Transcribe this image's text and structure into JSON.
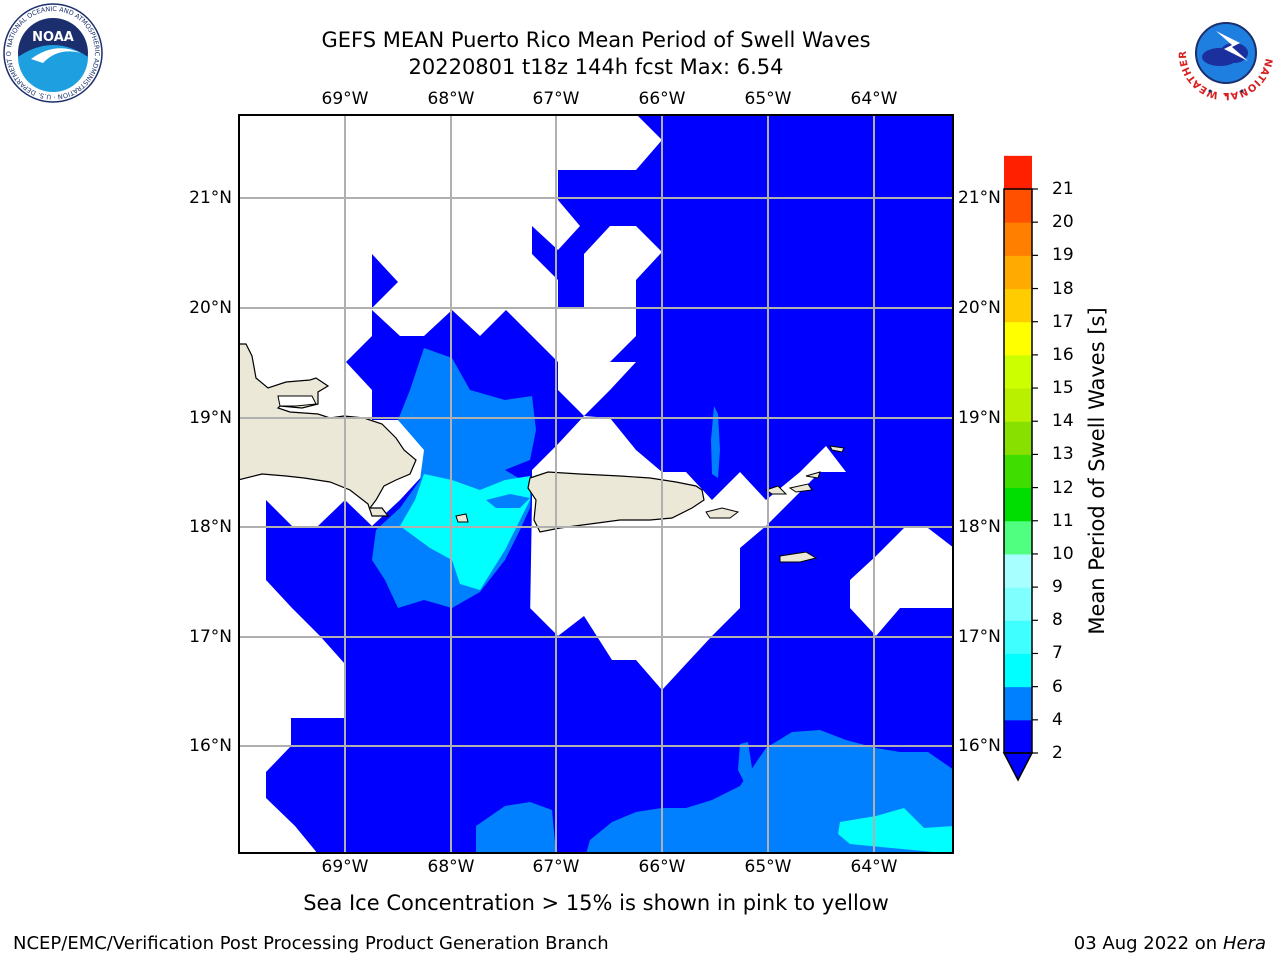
{
  "title_line_1": "GEFS MEAN Puerto Rico Mean Period of Swell Waves",
  "title_line_2": "20220801 t18z 144h fcst   Max: 6.54",
  "longitude_ticks": [
    "69°W",
    "68°W",
    "67°W",
    "66°W",
    "65°W",
    "64°W"
  ],
  "latitude_ticks": [
    "21°N",
    "20°N",
    "19°N",
    "18°N",
    "17°N",
    "16°N"
  ],
  "colorbar": {
    "label": "Mean Period of Swell Waves [s]",
    "ticks": [
      "2",
      "4",
      "6",
      "7",
      "8",
      "9",
      "10",
      "11",
      "12",
      "13",
      "14",
      "15",
      "16",
      "17",
      "18",
      "19",
      "20",
      "21"
    ],
    "colors": [
      "#0000fe",
      "#0080ff",
      "#00ffff",
      "#40ffff",
      "#80ffff",
      "#a8ffff",
      "#50ff80",
      "#00dd00",
      "#40dd00",
      "#88e000",
      "#b8f000",
      "#ccff00",
      "#ffff00",
      "#ffcc00",
      "#ffaa00",
      "#ff8000",
      "#ff5000",
      "#ff2000",
      "#ff0000"
    ]
  },
  "subtitle": "Sea Ice Concentration > 15% is shown in pink to yellow",
  "footer_left": "NCEP/EMC/Verification Post Processing Product Generation Branch",
  "footer_right_date": "03 Aug 2022 on",
  "footer_right_machine": "Hera",
  "logos": {
    "noaa": {
      "text": "NOAA",
      "ring_text": "NATIONAL OCEANIC AND ATMOSPHERIC ADMINISTRATION · U.S. DEPARTMENT OF COMMERCE"
    },
    "nws": {
      "ring_text": "NATIONAL WEATHER SERVICE"
    }
  },
  "colors": {
    "land": "#ece8d8",
    "swell_2_4": "#0000fe",
    "swell_4_6": "#0080ff",
    "swell_6_8": "#00ffff",
    "grid": "#b0b0b0"
  }
}
